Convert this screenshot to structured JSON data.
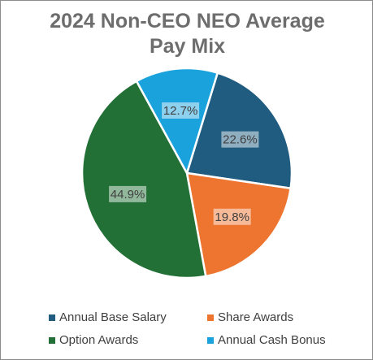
{
  "chart_data": {
    "type": "pie",
    "title_lines": [
      "2024 Non-CEO NEO Average",
      "Pay Mix"
    ],
    "slices": [
      {
        "name": "Annual Base Salary",
        "value": 22.6,
        "label": "22.6%",
        "color": "#1f5c80"
      },
      {
        "name": "Share Awards",
        "value": 19.8,
        "label": "19.8%",
        "color": "#ed7530"
      },
      {
        "name": "Option Awards",
        "value": 44.9,
        "label": "44.9%",
        "color": "#227036"
      },
      {
        "name": "Annual Cash Bonus",
        "value": 12.7,
        "label": "12.7%",
        "color": "#1aa2dc"
      }
    ],
    "start_angle_deg": 17,
    "legend": [
      {
        "name": "Annual Base Salary",
        "color": "#1f5c80"
      },
      {
        "name": "Share Awards",
        "color": "#ed7530"
      },
      {
        "name": "Option Awards",
        "color": "#227036"
      },
      {
        "name": "Annual Cash Bonus",
        "color": "#1aa2dc"
      }
    ],
    "legend_position": "bottom"
  }
}
